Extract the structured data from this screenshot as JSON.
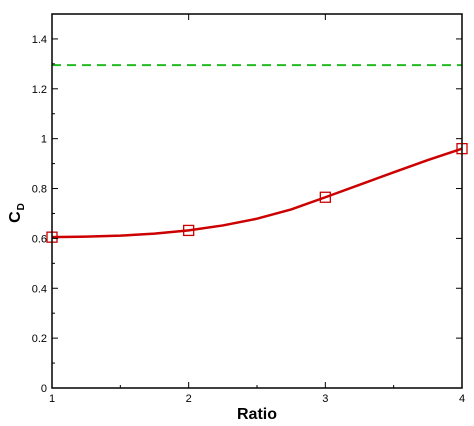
{
  "chart_data": {
    "type": "line",
    "title": "",
    "xlabel": "Ratio",
    "ylabel": {
      "main": "C",
      "sub": "D"
    },
    "xlim": [
      1,
      4
    ],
    "ylim": [
      0,
      1.5
    ],
    "x_ticks": [
      1,
      2,
      3,
      4
    ],
    "x_tick_labels": [
      "1",
      "2",
      "3",
      "4"
    ],
    "y_ticks": [
      0,
      0.2,
      0.4,
      0.6,
      0.8,
      1.0,
      1.2,
      1.4
    ],
    "y_tick_labels": [
      "0",
      "0.2",
      "0.4",
      "0.6",
      "0.8",
      "1",
      "1.2",
      "1.4"
    ],
    "grid": false,
    "series": [
      {
        "style": "solid-line-with-square-markers",
        "color": "#cc0000",
        "x": [
          1,
          2,
          3,
          4
        ],
        "y": [
          0.605,
          0.632,
          0.765,
          0.96
        ],
        "curve_x": [
          1,
          1.25,
          1.5,
          1.75,
          2,
          2.25,
          2.5,
          2.75,
          3,
          3.25,
          3.5,
          3.75,
          4
        ],
        "curve_y": [
          0.605,
          0.607,
          0.611,
          0.619,
          0.632,
          0.652,
          0.679,
          0.716,
          0.765,
          0.815,
          0.865,
          0.914,
          0.96
        ]
      },
      {
        "style": "dashed-line",
        "color": "#22bb22",
        "x": [
          1,
          4
        ],
        "y": [
          1.295,
          1.295
        ]
      }
    ]
  }
}
